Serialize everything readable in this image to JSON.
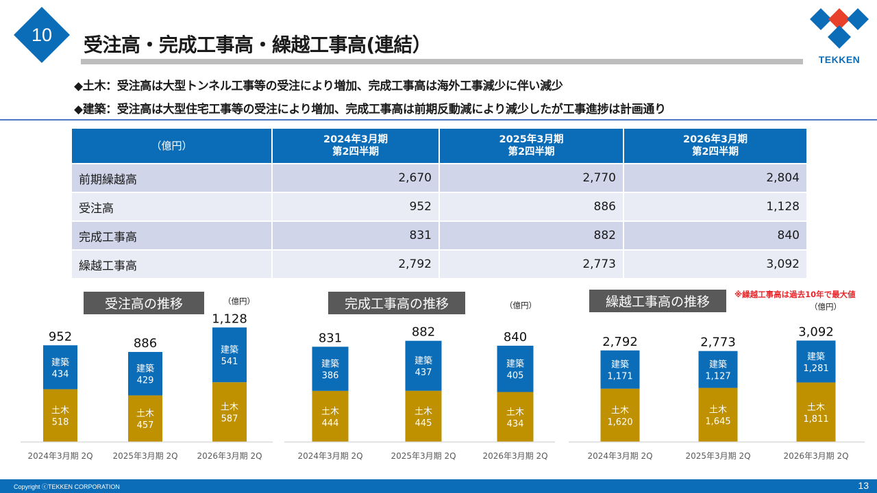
{
  "slide": {
    "section_number": "10",
    "title": "受注高・完成工事高・繰越工事高(連結）",
    "logo_text": "TEKKEN",
    "bullets": [
      "◆土木：受注高は大型トンネル工事等の受注により増加、完成工事高は海外工事減少に伴い減少",
      "◆建築：受注高は大型住宅工事等の受注により増加、完成工事高は前期反動減により減少したが工事進捗は計画通り"
    ],
    "footer_copyright": "Copyright ⓒTEKKEN CORPORATION",
    "page_number": "13",
    "colors": {
      "brand_blue": "#0b6cb8",
      "civil_gold": "#bf9000",
      "title_gray": "#595959",
      "accent_red": "#e8262a",
      "logo_red": "#e8402a"
    }
  },
  "table": {
    "unit_header": "（億円）",
    "columns": [
      {
        "line1": "2024年3月期",
        "line2": "第2四半期"
      },
      {
        "line1": "2025年3月期",
        "line2": "第2四半期"
      },
      {
        "line1": "2026年3月期",
        "line2": "第2四半期"
      }
    ],
    "rows": [
      {
        "label": "前期繰越高",
        "values": [
          "2,670",
          "2,770",
          "2,804"
        ]
      },
      {
        "label": "受注高",
        "values": [
          "952",
          "886",
          "1,128"
        ]
      },
      {
        "label": "完成工事高",
        "values": [
          "831",
          "882",
          "840"
        ]
      },
      {
        "label": "繰越工事高",
        "values": [
          "2,792",
          "2,773",
          "3,092"
        ]
      }
    ]
  },
  "note": "※繰越工事高は過去10年で最大値",
  "chart_data": [
    {
      "type": "bar",
      "stacked": true,
      "title": "受注高の推移",
      "unit": "（億円）",
      "categories": [
        "2024年3月期 2Q",
        "2025年3月期 2Q",
        "2026年3月期 2Q"
      ],
      "series": [
        {
          "name": "土木",
          "values": [
            518,
            457,
            587
          ]
        },
        {
          "name": "建築",
          "values": [
            434,
            429,
            541
          ]
        }
      ],
      "totals": [
        952,
        886,
        1128
      ],
      "total_labels": [
        "952",
        "886",
        "1,128"
      ],
      "ylim": [
        0,
        1150
      ],
      "grid": false,
      "legend": "none"
    },
    {
      "type": "bar",
      "stacked": true,
      "title": "完成工事高の推移",
      "unit": "（億円）",
      "categories": [
        "2024年3月期 2Q",
        "2025年3月期 2Q",
        "2026年3月期 2Q"
      ],
      "series": [
        {
          "name": "土木",
          "values": [
            444,
            445,
            434
          ]
        },
        {
          "name": "建築",
          "values": [
            386,
            437,
            405
          ]
        }
      ],
      "totals": [
        831,
        882,
        840
      ],
      "total_labels": [
        "831",
        "882",
        "840"
      ],
      "ylim": [
        0,
        1000
      ],
      "grid": false,
      "legend": "none"
    },
    {
      "type": "bar",
      "stacked": true,
      "title": "繰越工事高の推移",
      "unit": "（億円）",
      "categories": [
        "2024年3月期 2Q",
        "2025年3月期 2Q",
        "2026年3月期 2Q"
      ],
      "series": [
        {
          "name": "土木",
          "values": [
            1620,
            1645,
            1811
          ]
        },
        {
          "name": "建築",
          "values": [
            1171,
            1127,
            1281
          ]
        }
      ],
      "totals": [
        2792,
        2773,
        3092
      ],
      "total_labels": [
        "2,792",
        "2,773",
        "3,092"
      ],
      "ylim": [
        0,
        3100
      ],
      "grid": false,
      "legend": "none"
    }
  ]
}
